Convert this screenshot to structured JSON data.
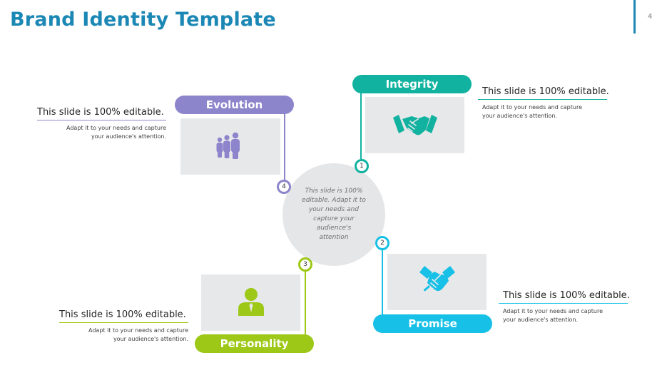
{
  "title": "Brand Identity Template",
  "page_number": "4",
  "center_text": "This slide is 100% editable. Adapt it to your needs and capture your audience's attention",
  "colors": {
    "title": "#1b87b5",
    "evolution": "#8c85cc",
    "integrity": "#12b2a0",
    "promise": "#17c0e6",
    "personality": "#9dc817",
    "card_bg": "#e7e8ea"
  },
  "items": {
    "evolution": {
      "label": "Evolution",
      "number": "4",
      "icon": "people-group-icon",
      "heading": "This slide is 100% editable.",
      "body": "Adapt it to your needs and capture your audience's attention."
    },
    "integrity": {
      "label": "Integrity",
      "number": "1",
      "icon": "handshake-icon",
      "heading": "This slide is 100% editable.",
      "body": "Adapt it to your needs and capture your audience's attention."
    },
    "promise": {
      "label": "Promise",
      "number": "2",
      "icon": "handshake-icon",
      "heading": "This slide is 100% editable.",
      "body": "Adapt it to your needs and capture your audience's attention."
    },
    "personality": {
      "label": "Personality",
      "number": "3",
      "icon": "businessman-icon",
      "heading": "This slide is 100% editable.",
      "body": "Adapt it to your needs and capture your audience's attention."
    }
  }
}
